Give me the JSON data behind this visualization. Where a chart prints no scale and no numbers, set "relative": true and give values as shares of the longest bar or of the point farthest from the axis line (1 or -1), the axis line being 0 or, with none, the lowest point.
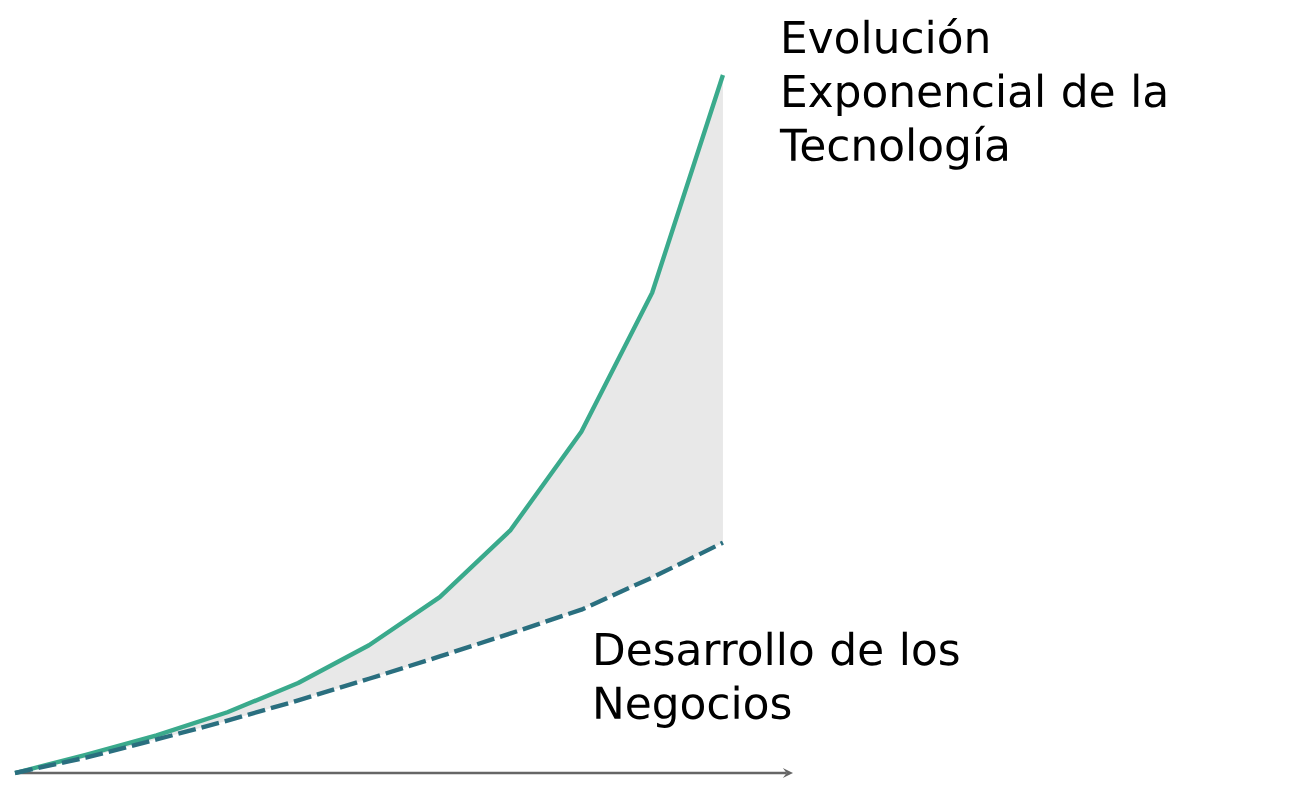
{
  "chart_data": {
    "type": "line",
    "relative": true,
    "categories": [
      null,
      null,
      null,
      null,
      null,
      null,
      null,
      null,
      null,
      null,
      null
    ],
    "series": [
      {
        "name": "Evolución Exponencial de la Tecnología",
        "color": "#3aaa8c",
        "line_style": "solid",
        "values": [
          0,
          0.026,
          0.054,
          0.087,
          0.129,
          0.183,
          0.252,
          0.348,
          0.489,
          0.688,
          1
        ],
        "lower": [
          0,
          0.022,
          0.048,
          0.075,
          0.104,
          0.135,
          0.167,
          0.2,
          0.234,
          0.28,
          0.33
        ],
        "upper": [
          0,
          0.026,
          0.054,
          0.087,
          0.129,
          0.183,
          0.252,
          0.348,
          0.489,
          0.688,
          1
        ]
      },
      {
        "name": "Desarrollo de los Negocios",
        "color": "#2a6f7f",
        "line_style": "dashed",
        "values": [
          0,
          0.022,
          0.048,
          0.075,
          0.104,
          0.135,
          0.167,
          0.2,
          0.234,
          0.28,
          0.33
        ]
      }
    ]
  }
}
